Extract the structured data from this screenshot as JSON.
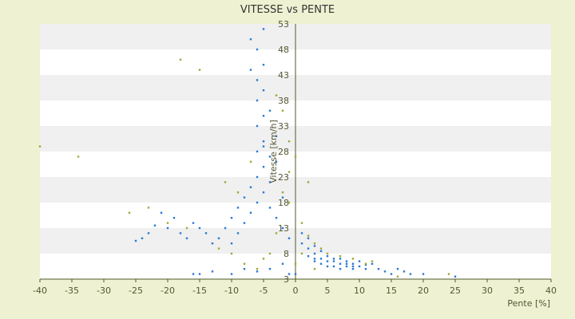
{
  "chart_data": {
    "type": "scatter",
    "title": "VITESSE vs PENTE",
    "xlabel": "Pente [%]",
    "ylabel": "Vitesse [km/h]",
    "xlim": [
      -40,
      40
    ],
    "ylim": [
      3,
      53
    ],
    "x_ticks": [
      -40,
      -35,
      -30,
      -25,
      -20,
      -15,
      -10,
      -5,
      0,
      5,
      10,
      15,
      20,
      25,
      30,
      35,
      40
    ],
    "y_ticks": [
      3,
      8,
      13,
      18,
      23,
      28,
      33,
      38,
      43,
      48,
      53
    ],
    "grid": "horizontal alternating bands",
    "colors": {
      "background": "#eef2d2",
      "band_light": "#ffffff",
      "band_dark": "#f0f0f0",
      "axis": "#4d5a2a",
      "series_main": "#2b78d4",
      "series_secondary": "#a5a53a"
    },
    "series": [
      {
        "color": "#2b78d4",
        "points": [
          [
            -25,
            10.5
          ],
          [
            -24,
            11
          ],
          [
            -23,
            12
          ],
          [
            -22,
            13.5
          ],
          [
            -21,
            16
          ],
          [
            -20,
            13
          ],
          [
            -19,
            15
          ],
          [
            -18,
            12
          ],
          [
            -17,
            11
          ],
          [
            -16,
            14
          ],
          [
            -15,
            13
          ],
          [
            -14,
            12
          ],
          [
            -13,
            10
          ],
          [
            -12,
            11
          ],
          [
            -11,
            13
          ],
          [
            -10,
            15
          ],
          [
            -10,
            10
          ],
          [
            -9,
            12
          ],
          [
            -9,
            17
          ],
          [
            -8,
            14
          ],
          [
            -8,
            19
          ],
          [
            -7,
            16
          ],
          [
            -7,
            21
          ],
          [
            -6,
            18
          ],
          [
            -6,
            23
          ],
          [
            -6,
            28
          ],
          [
            -5,
            20
          ],
          [
            -5,
            25
          ],
          [
            -5,
            30
          ],
          [
            -5,
            35
          ],
          [
            -5,
            40
          ],
          [
            -5,
            45
          ],
          [
            -6,
            48
          ],
          [
            -7,
            44
          ],
          [
            -6,
            38
          ],
          [
            -6,
            33
          ],
          [
            -4,
            27
          ],
          [
            -4,
            22
          ],
          [
            -3,
            26
          ],
          [
            -3,
            31
          ],
          [
            -7,
            50
          ],
          [
            -5,
            52
          ],
          [
            -6,
            42
          ],
          [
            -4,
            36
          ],
          [
            -5,
            29
          ],
          [
            -4,
            17
          ],
          [
            -3,
            15
          ],
          [
            -2,
            13
          ],
          [
            -1,
            11
          ],
          [
            -2,
            19
          ],
          [
            -16,
            4
          ],
          [
            -15,
            4
          ],
          [
            -13,
            4.5
          ],
          [
            -10,
            4
          ],
          [
            -8,
            5
          ],
          [
            -6,
            4.5
          ],
          [
            -4,
            5
          ],
          [
            -2,
            6
          ],
          [
            -1,
            4
          ],
          [
            0,
            4
          ],
          [
            1,
            12
          ],
          [
            1,
            10
          ],
          [
            2,
            11
          ],
          [
            2,
            9
          ],
          [
            3,
            8
          ],
          [
            3,
            6.5
          ],
          [
            4,
            7
          ],
          [
            4,
            6
          ],
          [
            5,
            6.5
          ],
          [
            5,
            5.5
          ],
          [
            6,
            7
          ],
          [
            6,
            5.5
          ],
          [
            7,
            6
          ],
          [
            7,
            5
          ],
          [
            8,
            6
          ],
          [
            8,
            5.5
          ],
          [
            9,
            5.5
          ],
          [
            9,
            5
          ],
          [
            10,
            5.5
          ],
          [
            11,
            5
          ],
          [
            12,
            6
          ],
          [
            13,
            5
          ],
          [
            14,
            4.5
          ],
          [
            15,
            4
          ],
          [
            16,
            5
          ],
          [
            17,
            4.5
          ],
          [
            18,
            4
          ],
          [
            20,
            4
          ],
          [
            25,
            3.5
          ],
          [
            3,
            9.5
          ],
          [
            4,
            8.5
          ],
          [
            5,
            7.5
          ],
          [
            6,
            6.5
          ],
          [
            7,
            7
          ],
          [
            8,
            6.5
          ],
          [
            9,
            6
          ],
          [
            10,
            6.5
          ],
          [
            11,
            5.8
          ],
          [
            2,
            7.5
          ],
          [
            3,
            7
          ]
        ]
      },
      {
        "color": "#a5a53a",
        "points": [
          [
            -40,
            29
          ],
          [
            -34,
            27
          ],
          [
            -18,
            46
          ],
          [
            -15,
            44
          ],
          [
            -26,
            16
          ],
          [
            -23,
            17
          ],
          [
            -20,
            14
          ],
          [
            -17,
            13
          ],
          [
            -12,
            9
          ],
          [
            -10,
            8
          ],
          [
            -8,
            6
          ],
          [
            -6,
            5
          ],
          [
            -4,
            8
          ],
          [
            -3,
            12
          ],
          [
            -2,
            20
          ],
          [
            -1,
            24
          ],
          [
            -2,
            36
          ],
          [
            -3,
            39
          ],
          [
            -1,
            30
          ],
          [
            0,
            27
          ],
          [
            1,
            14
          ],
          [
            2,
            11.5
          ],
          [
            3,
            10
          ],
          [
            4,
            9
          ],
          [
            5,
            8
          ],
          [
            7,
            7.5
          ],
          [
            9,
            7
          ],
          [
            11,
            6
          ],
          [
            12,
            6.5
          ],
          [
            16,
            3.5
          ],
          [
            24,
            4
          ],
          [
            1,
            8
          ],
          [
            0,
            6
          ],
          [
            2,
            22
          ],
          [
            -1,
            18
          ],
          [
            3,
            5
          ],
          [
            -5,
            7
          ],
          [
            -7,
            26
          ],
          [
            -9,
            20
          ],
          [
            -11,
            22
          ]
        ]
      }
    ]
  }
}
